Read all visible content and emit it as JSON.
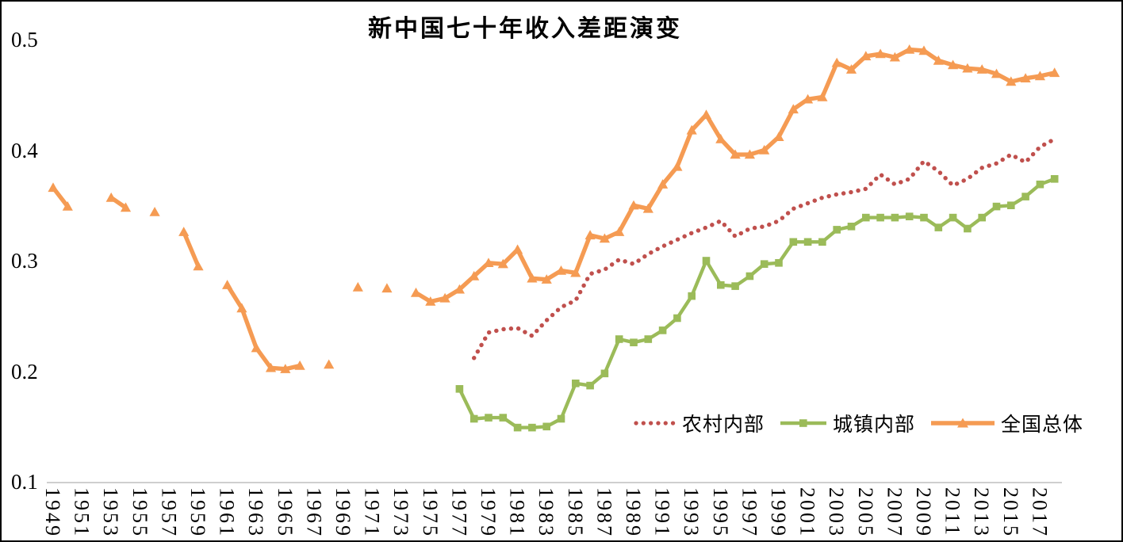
{
  "frame": {
    "border_color": "#000000",
    "background": "#ffffff"
  },
  "chart_data": {
    "type": "line",
    "title": "新中国七十年收入差距演变",
    "xlabel": "",
    "ylabel": "",
    "ylim": [
      0.1,
      0.5
    ],
    "xlim": [
      1948,
      2019
    ],
    "grid": false,
    "axis_line_color": "#bfbfbf",
    "legend_position": "inside-bottom-right",
    "y_ticks": [
      0.5,
      0.4,
      0.3,
      0.2,
      0.1
    ],
    "x_ticks": [
      1949,
      1951,
      1953,
      1955,
      1957,
      1959,
      1961,
      1963,
      1965,
      1967,
      1969,
      1971,
      1973,
      1975,
      1977,
      1979,
      1981,
      1983,
      1985,
      1987,
      1989,
      1991,
      1993,
      1995,
      1997,
      1999,
      2001,
      2003,
      2005,
      2007,
      2009,
      2011,
      2013,
      2015,
      2017
    ],
    "series": [
      {
        "id": "rural",
        "name": "农村内部",
        "color": "#c0504d",
        "line_style": "dotted",
        "marker": "none",
        "points": [
          [
            1978,
            0.212
          ],
          [
            1979,
            0.235
          ],
          [
            1980,
            0.238
          ],
          [
            1981,
            0.239
          ],
          [
            1982,
            0.232
          ],
          [
            1983,
            0.246
          ],
          [
            1984,
            0.258
          ],
          [
            1985,
            0.264
          ],
          [
            1986,
            0.288
          ],
          [
            1987,
            0.292
          ],
          [
            1988,
            0.301
          ],
          [
            1989,
            0.297
          ],
          [
            1990,
            0.306
          ],
          [
            1991,
            0.313
          ],
          [
            1992,
            0.319
          ],
          [
            1993,
            0.325
          ],
          [
            1994,
            0.33
          ],
          [
            1995,
            0.336
          ],
          [
            1996,
            0.322
          ],
          [
            1997,
            0.329
          ],
          [
            1998,
            0.331
          ],
          [
            1999,
            0.336
          ],
          [
            2000,
            0.347
          ],
          [
            2001,
            0.352
          ],
          [
            2002,
            0.357
          ],
          [
            2003,
            0.36
          ],
          [
            2004,
            0.362
          ],
          [
            2005,
            0.365
          ],
          [
            2006,
            0.378
          ],
          [
            2007,
            0.369
          ],
          [
            2008,
            0.374
          ],
          [
            2009,
            0.39
          ],
          [
            2010,
            0.381
          ],
          [
            2011,
            0.368
          ],
          [
            2012,
            0.374
          ],
          [
            2013,
            0.384
          ],
          [
            2014,
            0.388
          ],
          [
            2015,
            0.396
          ],
          [
            2016,
            0.389
          ],
          [
            2017,
            0.403
          ],
          [
            2018,
            0.41
          ]
        ]
      },
      {
        "id": "urban",
        "name": "城镇内部",
        "color": "#9bbb59",
        "line_style": "solid",
        "marker": "square",
        "points": [
          [
            1977,
            0.184
          ],
          [
            1978,
            0.157
          ],
          [
            1979,
            0.158
          ],
          [
            1980,
            0.158
          ],
          [
            1981,
            0.149
          ],
          [
            1982,
            0.149
          ],
          [
            1983,
            0.15
          ],
          [
            1984,
            0.157
          ],
          [
            1985,
            0.189
          ],
          [
            1986,
            0.187
          ],
          [
            1987,
            0.198
          ],
          [
            1988,
            0.229
          ],
          [
            1989,
            0.226
          ],
          [
            1990,
            0.229
          ],
          [
            1991,
            0.237
          ],
          [
            1992,
            0.248
          ],
          [
            1993,
            0.268
          ],
          [
            1994,
            0.3
          ],
          [
            1995,
            0.278
          ],
          [
            1996,
            0.277
          ],
          [
            1997,
            0.286
          ],
          [
            1998,
            0.297
          ],
          [
            1999,
            0.298
          ],
          [
            2000,
            0.317
          ],
          [
            2001,
            0.317
          ],
          [
            2002,
            0.317
          ],
          [
            2003,
            0.328
          ],
          [
            2004,
            0.331
          ],
          [
            2005,
            0.339
          ],
          [
            2006,
            0.339
          ],
          [
            2007,
            0.339
          ],
          [
            2008,
            0.34
          ],
          [
            2009,
            0.339
          ],
          [
            2010,
            0.33
          ],
          [
            2011,
            0.339
          ],
          [
            2012,
            0.329
          ],
          [
            2013,
            0.339
          ],
          [
            2014,
            0.349
          ],
          [
            2015,
            0.35
          ],
          [
            2016,
            0.358
          ],
          [
            2017,
            0.369
          ],
          [
            2018,
            0.374
          ]
        ]
      },
      {
        "id": "national",
        "name": "全国总体",
        "color": "#f59b53",
        "line_style": "solid",
        "marker": "triangle",
        "points": [
          [
            1949,
            0.366
          ],
          [
            1950,
            0.349
          ],
          [
            1953,
            0.357
          ],
          [
            1954,
            0.348
          ],
          [
            1956,
            0.344
          ],
          [
            1958,
            0.326
          ],
          [
            1959,
            0.295
          ],
          [
            1961,
            0.278
          ],
          [
            1962,
            0.257
          ],
          [
            1963,
            0.221
          ],
          [
            1964,
            0.203
          ],
          [
            1965,
            0.202
          ],
          [
            1966,
            0.205
          ],
          [
            1968,
            0.206
          ],
          [
            1970,
            0.276
          ],
          [
            1972,
            0.275
          ],
          [
            1974,
            0.271
          ],
          [
            1975,
            0.263
          ],
          [
            1976,
            0.266
          ],
          [
            1977,
            0.274
          ],
          [
            1978,
            0.286
          ],
          [
            1979,
            0.298
          ],
          [
            1980,
            0.297
          ],
          [
            1981,
            0.31
          ],
          [
            1982,
            0.284
          ],
          [
            1983,
            0.283
          ],
          [
            1984,
            0.291
          ],
          [
            1985,
            0.289
          ],
          [
            1986,
            0.323
          ],
          [
            1987,
            0.32
          ],
          [
            1988,
            0.326
          ],
          [
            1989,
            0.35
          ],
          [
            1990,
            0.347
          ],
          [
            1991,
            0.369
          ],
          [
            1992,
            0.385
          ],
          [
            1993,
            0.418
          ],
          [
            1994,
            0.432
          ],
          [
            1995,
            0.41
          ],
          [
            1996,
            0.396
          ],
          [
            1997,
            0.396
          ],
          [
            1998,
            0.4
          ],
          [
            1999,
            0.412
          ],
          [
            2000,
            0.437
          ],
          [
            2001,
            0.446
          ],
          [
            2002,
            0.448
          ],
          [
            2003,
            0.479
          ],
          [
            2004,
            0.473
          ],
          [
            2005,
            0.485
          ],
          [
            2006,
            0.487
          ],
          [
            2007,
            0.484
          ],
          [
            2008,
            0.491
          ],
          [
            2009,
            0.49
          ],
          [
            2010,
            0.481
          ],
          [
            2011,
            0.477
          ],
          [
            2012,
            0.474
          ],
          [
            2013,
            0.473
          ],
          [
            2014,
            0.469
          ],
          [
            2015,
            0.462
          ],
          [
            2016,
            0.465
          ],
          [
            2017,
            0.467
          ],
          [
            2018,
            0.47
          ]
        ]
      }
    ]
  }
}
